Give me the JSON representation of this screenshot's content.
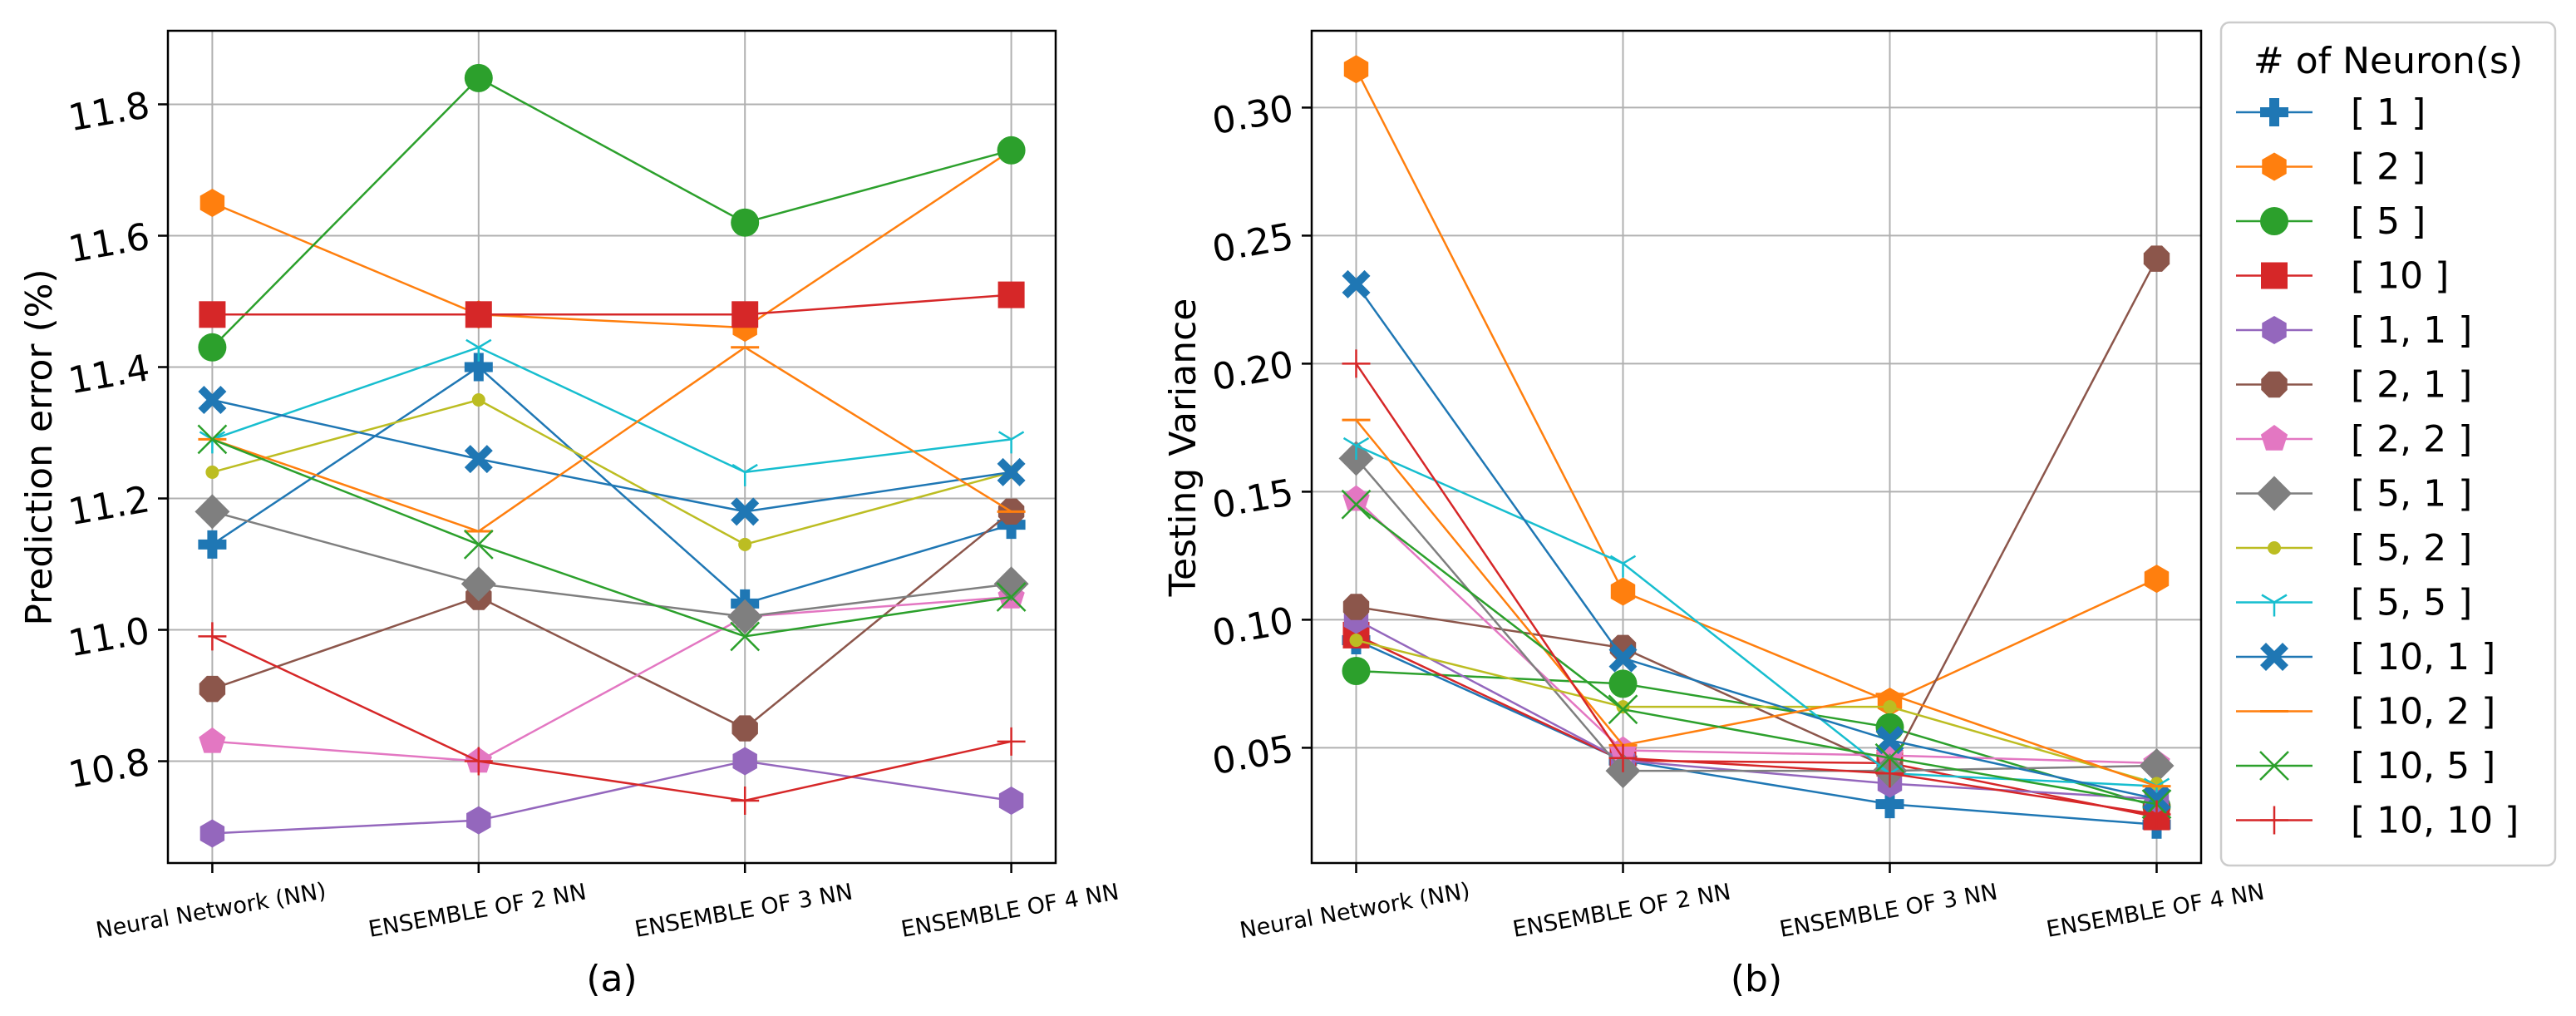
{
  "chart_data": [
    {
      "type": "line",
      "panel_label": "(a)",
      "ylabel": "Prediction error (%)",
      "xlabel": "",
      "categories": [
        "Neural Network (NN)",
        "ENSEMBLE OF 2 NN",
        "ENSEMBLE OF 3 NN",
        "ENSEMBLE OF 4 NN"
      ],
      "ylim": [
        10.645,
        11.912
      ],
      "yticks": [
        10.8,
        11.0,
        11.2,
        11.4,
        11.6,
        11.8
      ],
      "ytick_labels": [
        "10.8",
        "11.0",
        "11.2",
        "11.4",
        "11.6",
        "11.8"
      ],
      "grid": true,
      "series": [
        {
          "name": "[ 1 ]",
          "values": [
            11.13,
            11.4,
            11.04,
            11.16
          ]
        },
        {
          "name": "[ 2 ]",
          "values": [
            11.65,
            11.48,
            11.46,
            11.73
          ]
        },
        {
          "name": "[ 5 ]",
          "values": [
            11.43,
            11.84,
            11.62,
            11.73
          ]
        },
        {
          "name": "[ 10 ]",
          "values": [
            11.48,
            11.48,
            11.48,
            11.51
          ]
        },
        {
          "name": "[ 1, 1 ]",
          "values": [
            10.69,
            10.71,
            10.8,
            10.74
          ]
        },
        {
          "name": "[ 2, 1 ]",
          "values": [
            10.91,
            11.05,
            10.85,
            11.18
          ]
        },
        {
          "name": "[ 2, 2 ]",
          "values": [
            10.83,
            10.8,
            11.02,
            11.05
          ]
        },
        {
          "name": "[ 5, 1 ]",
          "values": [
            11.18,
            11.07,
            11.02,
            11.07
          ]
        },
        {
          "name": "[ 5, 2 ]",
          "values": [
            11.24,
            11.35,
            11.13,
            11.24
          ]
        },
        {
          "name": "[ 5, 5 ]",
          "values": [
            11.29,
            11.43,
            11.24,
            11.29
          ]
        },
        {
          "name": "[ 10, 1 ]",
          "values": [
            11.35,
            11.26,
            11.18,
            11.24
          ]
        },
        {
          "name": "[ 10, 2 ]",
          "values": [
            11.29,
            11.15,
            11.43,
            11.18
          ]
        },
        {
          "name": "[ 10, 5 ]",
          "values": [
            11.29,
            11.13,
            10.99,
            11.05
          ]
        },
        {
          "name": "[ 10, 10 ]",
          "values": [
            10.99,
            10.8,
            10.74,
            10.83
          ]
        }
      ]
    },
    {
      "type": "line",
      "panel_label": "(b)",
      "ylabel": "Testing Variance",
      "xlabel": "",
      "categories": [
        "Neural Network (NN)",
        "ENSEMBLE OF 2 NN",
        "ENSEMBLE OF 3 NN",
        "ENSEMBLE OF 4 NN"
      ],
      "ylim": [
        0.005,
        0.33
      ],
      "yticks": [
        0.05,
        0.1,
        0.15,
        0.2,
        0.25,
        0.3
      ],
      "ytick_labels": [
        "0.05",
        "0.10",
        "0.15",
        "0.20",
        "0.25",
        "0.30"
      ],
      "grid": true,
      "series": [
        {
          "name": "[ 1 ]",
          "values": [
            0.092,
            0.045,
            0.028,
            0.02
          ]
        },
        {
          "name": "[ 2 ]",
          "values": [
            0.315,
            0.111,
            0.068,
            0.116
          ]
        },
        {
          "name": "[ 5 ]",
          "values": [
            0.08,
            0.075,
            0.058,
            0.027
          ]
        },
        {
          "name": "[ 10 ]",
          "values": [
            0.094,
            0.045,
            0.044,
            0.023
          ]
        },
        {
          "name": "[ 1, 1 ]",
          "values": [
            0.1,
            0.045,
            0.036,
            0.03
          ]
        },
        {
          "name": "[ 2, 1 ]",
          "values": [
            0.105,
            0.089,
            0.042,
            0.241
          ]
        },
        {
          "name": "[ 2, 2 ]",
          "values": [
            0.147,
            0.049,
            0.047,
            0.044
          ]
        },
        {
          "name": "[ 5, 1 ]",
          "values": [
            0.163,
            0.041,
            0.041,
            0.043
          ]
        },
        {
          "name": "[ 5, 2 ]",
          "values": [
            0.092,
            0.066,
            0.066,
            0.036
          ]
        },
        {
          "name": "[ 5, 5 ]",
          "values": [
            0.168,
            0.122,
            0.04,
            0.035
          ]
        },
        {
          "name": "[ 10, 1 ]",
          "values": [
            0.231,
            0.085,
            0.053,
            0.03
          ]
        },
        {
          "name": "[ 10, 2 ]",
          "values": [
            0.178,
            0.051,
            0.071,
            0.035
          ]
        },
        {
          "name": "[ 10, 5 ]",
          "values": [
            0.145,
            0.065,
            0.046,
            0.028
          ]
        },
        {
          "name": "[ 10, 10 ]",
          "values": [
            0.2,
            0.046,
            0.04,
            0.024
          ]
        }
      ]
    }
  ],
  "legend": {
    "title": "# of Neuron(s)",
    "position": "right",
    "entries": [
      {
        "label": "[ 1 ]",
        "color": "#1f77b4",
        "marker": "plus"
      },
      {
        "label": "[ 2 ]",
        "color": "#ff7f0e",
        "marker": "hexagon"
      },
      {
        "label": "[ 5 ]",
        "color": "#2ca02c",
        "marker": "circle"
      },
      {
        "label": "[ 10 ]",
        "color": "#d62728",
        "marker": "square"
      },
      {
        "label": "[ 1, 1 ]",
        "color": "#9467bd",
        "marker": "hexagon"
      },
      {
        "label": "[ 2, 1 ]",
        "color": "#8c564b",
        "marker": "octagon"
      },
      {
        "label": "[ 2, 2 ]",
        "color": "#e377c2",
        "marker": "pentagon"
      },
      {
        "label": "[ 5, 1 ]",
        "color": "#7f7f7f",
        "marker": "diamond"
      },
      {
        "label": "[ 5, 2 ]",
        "color": "#bcbd22",
        "marker": "point"
      },
      {
        "label": "[ 5, 5 ]",
        "color": "#17becf",
        "marker": "tri"
      },
      {
        "label": "[ 10, 1 ]",
        "color": "#1f77b4",
        "marker": "x"
      },
      {
        "label": "[ 10, 2 ]",
        "color": "#ff7f0e",
        "marker": "hline"
      },
      {
        "label": "[ 10, 5 ]",
        "color": "#2ca02c",
        "marker": "thinx"
      },
      {
        "label": "[ 10, 10 ]",
        "color": "#d62728",
        "marker": "thinplus"
      }
    ]
  }
}
